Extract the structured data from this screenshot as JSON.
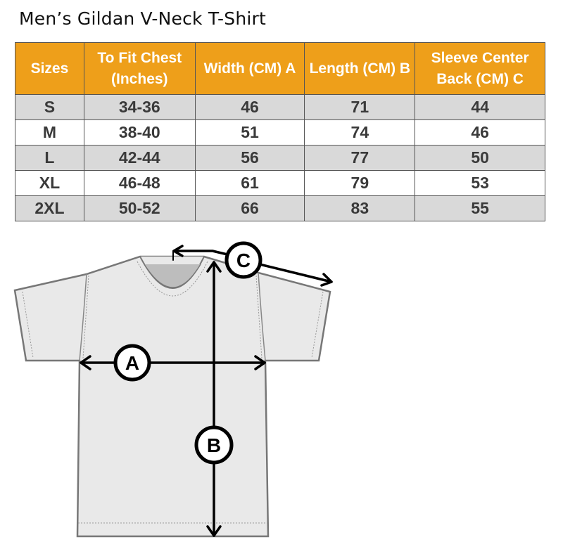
{
  "title": "Men’s Gildan V-Neck T-Shirt",
  "table": {
    "headers": [
      "Sizes",
      "To Fit Chest (Inches)",
      "Width (CM) A",
      "Length  (CM) B",
      "Sleeve Center Back (CM) C"
    ],
    "rows": [
      [
        "S",
        "34-36",
        "46",
        "71",
        "44"
      ],
      [
        "M",
        "38-40",
        "51",
        "74",
        "46"
      ],
      [
        "L",
        "42-44",
        "56",
        "77",
        "50"
      ],
      [
        "XL",
        "46-48",
        "61",
        "79",
        "53"
      ],
      [
        "2XL",
        "50-52",
        "66",
        "83",
        "55"
      ]
    ]
  },
  "diagram": {
    "label_a": "A",
    "label_b": "B",
    "label_c": "C"
  },
  "colors": {
    "header": "#EE9F1A",
    "row_alt": "#d9d9d9",
    "shirt": "#e8e8e8"
  }
}
